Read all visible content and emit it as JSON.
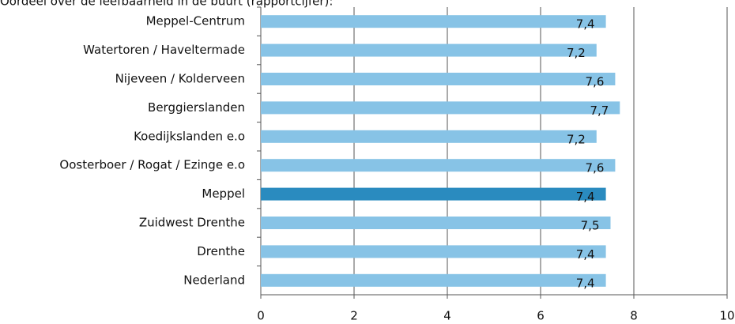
{
  "chart_data": {
    "type": "barh",
    "title": "Oordeel over de leefbaarheid in de buurt (rapportcijfer):",
    "categories": [
      "Meppel-Centrum",
      "Watertoren / Haveltermade",
      "Nijeveen / Kolderveen",
      "Berggierslanden",
      "Koedijkslanden e.o",
      "Oosterboer / Rogat / Ezinge e.o",
      "Meppel",
      "Zuidwest Drenthe",
      "Drenthe",
      "Nederland"
    ],
    "values": [
      7.4,
      7.2,
      7.6,
      7.7,
      7.2,
      7.6,
      7.4,
      7.5,
      7.4,
      7.4
    ],
    "value_labels": [
      "7,4",
      "7,2",
      "7,6",
      "7,7",
      "7,2",
      "7,6",
      "7,4",
      "7,5",
      "7,4",
      "7,4"
    ],
    "colors": [
      "#87c3e6",
      "#87c3e6",
      "#87c3e6",
      "#87c3e6",
      "#87c3e6",
      "#87c3e6",
      "#2a8bbf",
      "#87c3e6",
      "#87c3e6",
      "#87c3e6"
    ],
    "xlim": [
      0,
      10
    ],
    "xticks": [
      0,
      2,
      4,
      6,
      8,
      10
    ],
    "grid": true
  }
}
